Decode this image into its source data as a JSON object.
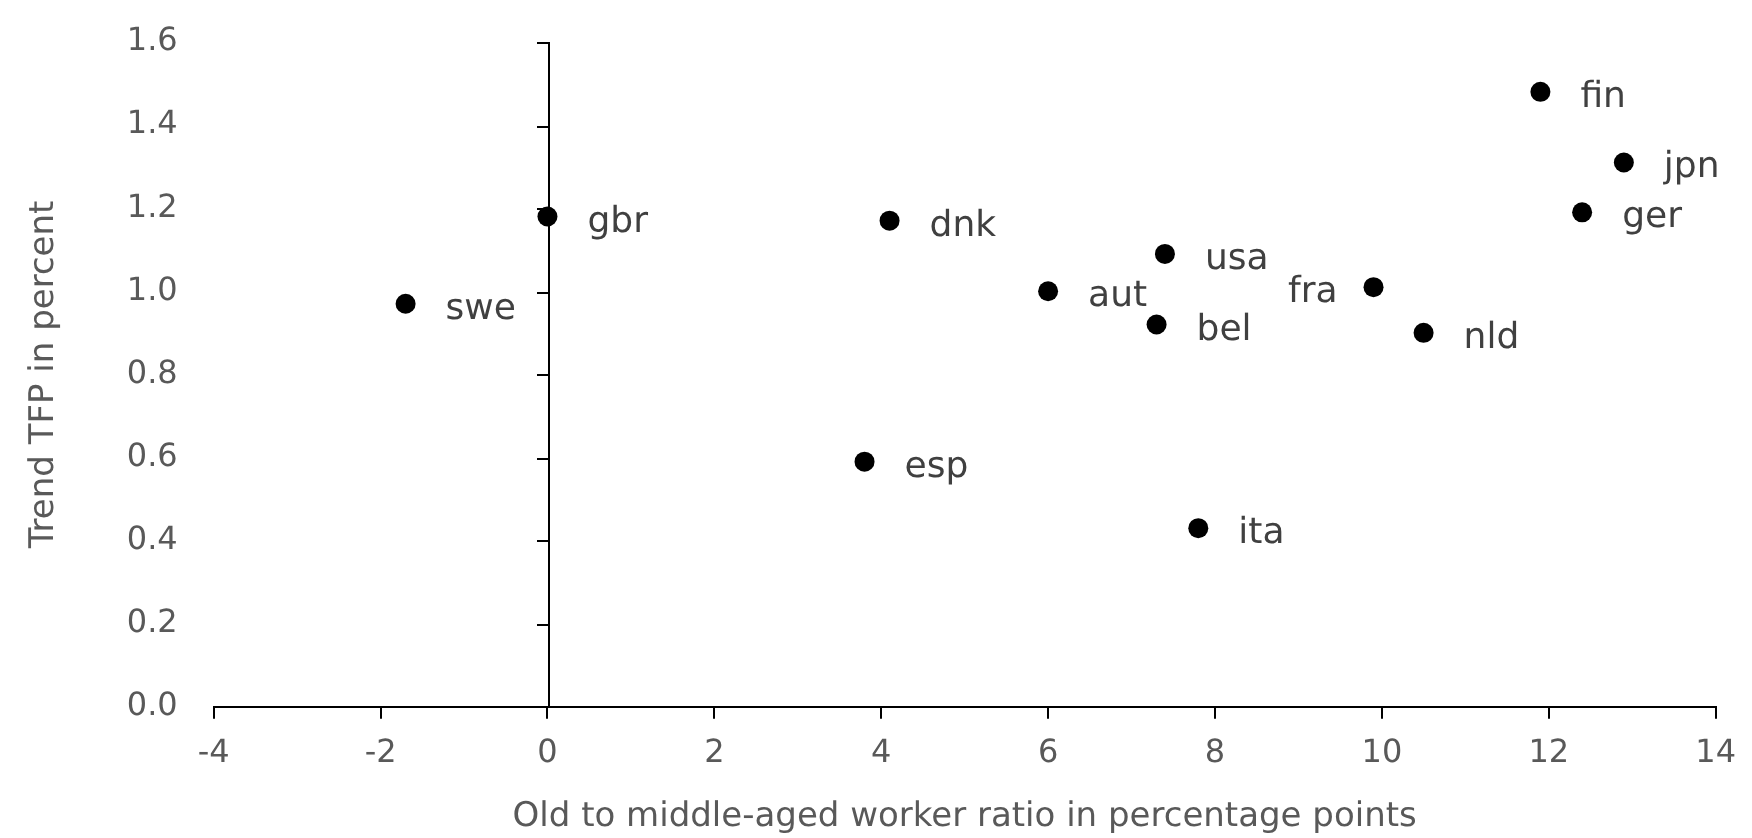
{
  "chart_data": {
    "type": "scatter",
    "xlabel": "Old to middle-aged worker ratio in percentage points",
    "ylabel": "Trend TFP in percent",
    "series": [
      {
        "color": "#000000",
        "x": [
          -1.7,
          0,
          3.8,
          4.1,
          6.0,
          7.3,
          7.4,
          7.8,
          9.9,
          10.5,
          11.9,
          12.4,
          12.9
        ],
        "values": [
          0.97,
          1.18,
          0.59,
          1.17,
          1.0,
          0.92,
          1.09,
          0.43,
          1.01,
          0.9,
          1.48,
          1.19,
          1.31
        ]
      }
    ],
    "marker": "circle",
    "xlim": [
      -4,
      14
    ],
    "xticks": [
      -4,
      -2,
      0,
      2,
      4,
      6,
      8,
      10,
      12,
      14
    ],
    "ylim": [
      0,
      1.6
    ],
    "yticks": [
      {
        "value": 0,
        "label": "0.0"
      },
      {
        "value": 0.2,
        "label": "0.2"
      },
      {
        "value": 0.4,
        "label": "0.4"
      },
      {
        "value": 0.6,
        "label": "0.6"
      },
      {
        "value": 0.8,
        "label": "0.8"
      },
      {
        "value": 1,
        "label": "1.0"
      },
      {
        "value": 1.2,
        "label": "1.2"
      },
      {
        "value": 1.4,
        "label": "1.4"
      },
      {
        "value": 1.6,
        "label": "1.6"
      }
    ],
    "ref_lines": [
      {
        "axis": "x",
        "value": 0,
        "color": "#000000"
      }
    ],
    "annotations": [
      {
        "text": "swe",
        "x": -1.7,
        "y": 0.97
      },
      {
        "text": "gbr",
        "x": 0,
        "y": 1.18
      },
      {
        "text": "esp",
        "x": 3.8,
        "y": 0.59
      },
      {
        "text": "dnk",
        "x": 4.1,
        "y": 1.17
      },
      {
        "text": "aut",
        "x": 6.0,
        "y": 1.0
      },
      {
        "text": "bel",
        "x": 7.3,
        "y": 0.92
      },
      {
        "text": "usa",
        "x": 7.4,
        "y": 1.09
      },
      {
        "text": "ita",
        "x": 7.8,
        "y": 0.43
      },
      {
        "text": "fra",
        "x": 9.9,
        "y": 1.01
      },
      {
        "text": "nld",
        "x": 10.5,
        "y": 0.9
      },
      {
        "text": "fin",
        "x": 11.9,
        "y": 1.48
      },
      {
        "text": "ger",
        "x": 12.4,
        "y": 1.19
      },
      {
        "text": "jpn",
        "x": 12.9,
        "y": 1.31
      }
    ]
  }
}
